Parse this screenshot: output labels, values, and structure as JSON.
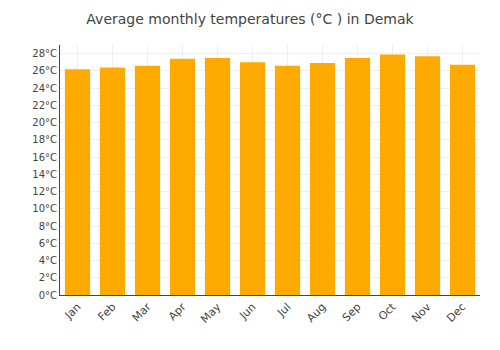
{
  "chart_data": {
    "type": "bar",
    "title": "Average monthly temperatures (°C ) in Demak",
    "categories": [
      "Jan",
      "Feb",
      "Mar",
      "Apr",
      "May",
      "Jun",
      "Jul",
      "Aug",
      "Sep",
      "Oct",
      "Nov",
      "Dec"
    ],
    "values": [
      26.2,
      26.4,
      26.6,
      27.4,
      27.5,
      27.0,
      26.6,
      26.9,
      27.5,
      27.9,
      27.7,
      26.7
    ],
    "color": "#FFAA00",
    "ylim": [
      0,
      29
    ],
    "yticks": [
      {
        "value": 0,
        "label": "0°C"
      },
      {
        "value": 2,
        "label": "2°C"
      },
      {
        "value": 4,
        "label": "4°C"
      },
      {
        "value": 6,
        "label": "6°C"
      },
      {
        "value": 8,
        "label": "8°C"
      },
      {
        "value": 10,
        "label": "10°C"
      },
      {
        "value": 12,
        "label": "12°C"
      },
      {
        "value": 14,
        "label": "14°C"
      },
      {
        "value": 16,
        "label": "16°C"
      },
      {
        "value": 18,
        "label": "18°C"
      },
      {
        "value": 20,
        "label": "20°C"
      },
      {
        "value": 22,
        "label": "22°C"
      },
      {
        "value": 24,
        "label": "24°C"
      },
      {
        "value": 26,
        "label": "26°C"
      },
      {
        "value": 28,
        "label": "28°C"
      }
    ],
    "grid": true
  }
}
